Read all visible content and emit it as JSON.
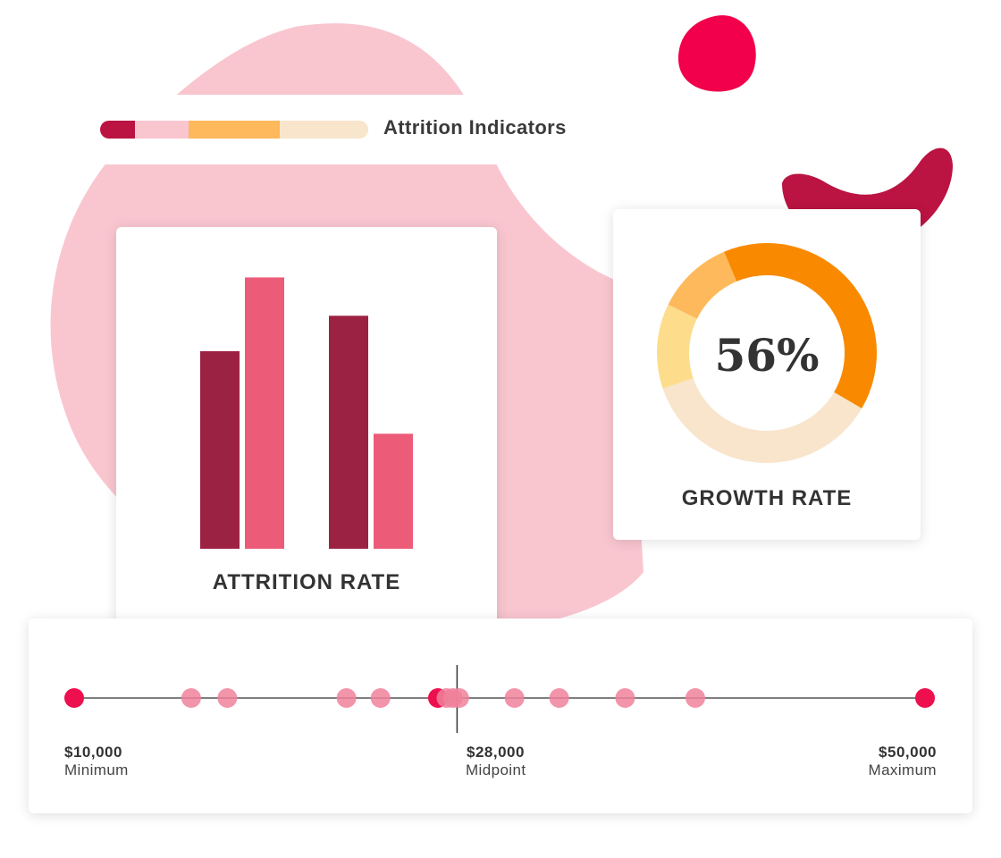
{
  "colors": {
    "blob_pink": "#f9c6d0",
    "dark_crimson": "#9c2243",
    "accent_pink": "#ec5c79",
    "orange": "#f98a00",
    "light_orange": "#fdb95c",
    "pale_yellow": "#fddc8c",
    "cream": "#f8e5cc",
    "dot_red": "#ee0f4e",
    "dot_pink": "#f0819b",
    "decor_red": "#f2004b",
    "decor_crimson": "#bb1342"
  },
  "legend": {
    "title": "Attrition Indicators",
    "segments": [
      {
        "color": "#bb1342",
        "fraction": 0.13
      },
      {
        "color": "#f9c6d0",
        "fraction": 0.2
      },
      {
        "color": "#fdb95c",
        "fraction": 0.34
      },
      {
        "color": "#f8e5cc",
        "fraction": 0.33
      }
    ]
  },
  "attrition": {
    "label": "ATTRITION RATE"
  },
  "growth": {
    "value": "56%",
    "label": "GROWTH RATE"
  },
  "range": {
    "min_value": "$10,000",
    "min_label": "Minimum",
    "mid_value": "$28,000",
    "mid_label": "Midpoint",
    "max_value": "$50,000",
    "max_label": "Maximum"
  },
  "chart_data": [
    {
      "type": "bar",
      "title": "",
      "categories": [
        "",
        ""
      ],
      "series": [
        {
          "values": [
            0.67,
            0.79
          ],
          "color": "#9c2243"
        },
        {
          "values": [
            0.92,
            0.39
          ],
          "color": "#ec5c79"
        }
      ],
      "ylim": [
        0,
        1
      ],
      "grid": false
    },
    {
      "type": "pie",
      "title": "",
      "donut": true,
      "center_label": "56%",
      "slices": [
        {
          "value": 35,
          "color": "#f98a00"
        },
        {
          "value": 32,
          "color": "#f8e5cc"
        },
        {
          "value": 11,
          "color": "#fddc8c"
        },
        {
          "value": 10,
          "color": "#fdb95c"
        }
      ]
    },
    {
      "type": "scatter",
      "title": "",
      "xlim": [
        10000,
        50000
      ],
      "midpoint": 28000,
      "points": [
        {
          "x": 10000,
          "color": "#ee0f4e",
          "endpoint": true
        },
        {
          "x": 15500,
          "color": "#f0819b"
        },
        {
          "x": 17200,
          "color": "#f0819b"
        },
        {
          "x": 22800,
          "color": "#f0819b"
        },
        {
          "x": 24400,
          "color": "#f0819b"
        },
        {
          "x": 27100,
          "color": "#ee0f4e"
        },
        {
          "x": 27500,
          "color": "#f0819b"
        },
        {
          "x": 27800,
          "color": "#f0819b"
        },
        {
          "x": 28100,
          "color": "#f0819b"
        },
        {
          "x": 30700,
          "color": "#f0819b"
        },
        {
          "x": 32800,
          "color": "#f0819b"
        },
        {
          "x": 35900,
          "color": "#f0819b"
        },
        {
          "x": 39200,
          "color": "#f0819b"
        },
        {
          "x": 50000,
          "color": "#ee0f4e",
          "endpoint": true
        }
      ]
    }
  ]
}
